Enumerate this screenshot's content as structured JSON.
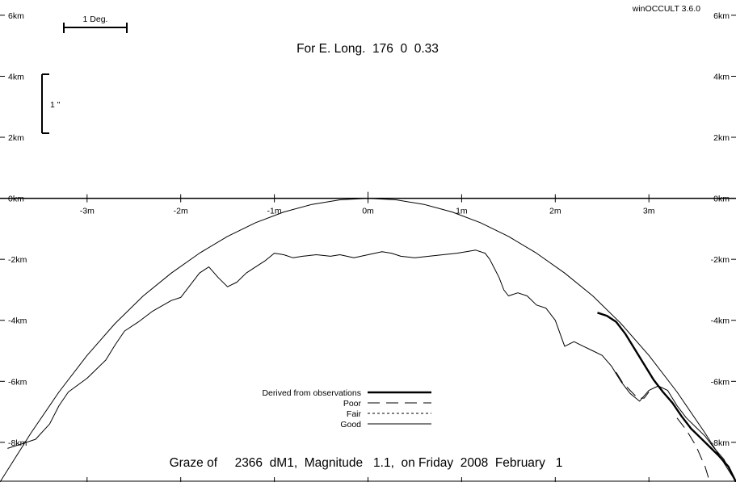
{
  "chart_data": {
    "type": "line",
    "software": "winOCCULT 3.6.0",
    "header": "For E. Long.  176  0  0.33",
    "title": "Graze of     2366  dM1,  Magnitude   1.1,  on Friday  2008  February   1",
    "scale_bar_deg": "1 Deg.",
    "scale_bar_arcsec": "1 \"",
    "x_ticks": [
      {
        "v": -3,
        "label": "-3m"
      },
      {
        "v": -2,
        "label": "-2m"
      },
      {
        "v": -1,
        "label": "-1m"
      },
      {
        "v": 0,
        "label": "0m"
      },
      {
        "v": 1,
        "label": "1m"
      },
      {
        "v": 2,
        "label": "2m"
      },
      {
        "v": 3,
        "label": "3m"
      }
    ],
    "y_ticks": [
      {
        "v": 6,
        "label": "6km"
      },
      {
        "v": 4,
        "label": "4km"
      },
      {
        "v": 2,
        "label": "2km"
      },
      {
        "v": 0,
        "label": "0km"
      },
      {
        "v": -2,
        "label": "-2km"
      },
      {
        "v": -4,
        "label": "-4km"
      },
      {
        "v": -6,
        "label": "-6km"
      },
      {
        "v": -8,
        "label": "-8km"
      }
    ],
    "xlim": [
      -3.93,
      3.93
    ],
    "ylim": [
      -9.3,
      6.5
    ],
    "legend": [
      {
        "label": "Derived from observations",
        "style": "thick"
      },
      {
        "label": "Poor",
        "style": "dashed"
      },
      {
        "label": "Fair",
        "style": "dotted"
      },
      {
        "label": "Good",
        "style": "thin"
      }
    ],
    "series": [
      {
        "style": "thin",
        "x": [
          -3.93,
          -3.6,
          -3.3,
          -3.0,
          -2.7,
          -2.4,
          -2.1,
          -1.8,
          -1.5,
          -1.2,
          -0.9,
          -0.6,
          -0.3,
          0.0,
          0.3,
          0.6,
          0.9,
          1.2,
          1.5,
          1.8,
          2.1,
          2.4,
          2.7,
          3.0,
          3.3,
          3.6,
          3.93
        ],
        "y": [
          -9.3,
          -7.7,
          -6.35,
          -5.15,
          -4.1,
          -3.2,
          -2.45,
          -1.8,
          -1.25,
          -0.8,
          -0.45,
          -0.2,
          -0.05,
          0.0,
          -0.05,
          -0.2,
          -0.45,
          -0.8,
          -1.25,
          -1.8,
          -2.45,
          -3.2,
          -4.1,
          -5.15,
          -6.35,
          -7.7,
          -9.3
        ]
      },
      {
        "style": "thin",
        "x": [
          -3.85,
          -3.7,
          -3.55,
          -3.4,
          -3.3,
          -3.2,
          -3.0,
          -2.8,
          -2.7,
          -2.6,
          -2.45,
          -2.3,
          -2.1,
          -2.0,
          -1.9,
          -1.8,
          -1.7,
          -1.6,
          -1.5,
          -1.4,
          -1.3,
          -1.2,
          -1.1,
          -1.0,
          -0.9,
          -0.8,
          -0.7,
          -0.55,
          -0.4,
          -0.3,
          -0.15,
          0.0,
          0.15,
          0.25,
          0.35,
          0.5,
          0.65,
          0.8,
          0.95,
          1.05,
          1.15,
          1.25,
          1.3,
          1.35,
          1.4,
          1.45,
          1.5,
          1.6,
          1.7,
          1.8,
          1.9,
          2.0,
          2.1,
          2.2,
          2.3,
          2.4,
          2.5,
          2.6,
          2.7,
          2.8,
          2.9,
          3.0,
          3.1,
          3.2,
          3.3,
          3.4,
          3.5,
          3.6,
          3.7,
          3.8,
          3.93
        ],
        "y": [
          -8.2,
          -8.05,
          -7.9,
          -7.4,
          -6.8,
          -6.35,
          -5.9,
          -5.3,
          -4.8,
          -4.35,
          -4.05,
          -3.7,
          -3.35,
          -3.25,
          -2.85,
          -2.45,
          -2.25,
          -2.6,
          -2.9,
          -2.75,
          -2.45,
          -2.25,
          -2.05,
          -1.8,
          -1.85,
          -1.95,
          -1.9,
          -1.85,
          -1.9,
          -1.85,
          -1.95,
          -1.85,
          -1.75,
          -1.8,
          -1.9,
          -1.95,
          -1.9,
          -1.85,
          -1.8,
          -1.75,
          -1.7,
          -1.8,
          -2.0,
          -2.3,
          -2.6,
          -3.0,
          -3.2,
          -3.1,
          -3.2,
          -3.5,
          -3.6,
          -4.0,
          -4.85,
          -4.7,
          -4.85,
          -5.0,
          -5.15,
          -5.5,
          -6.0,
          -6.4,
          -6.65,
          -6.3,
          -6.15,
          -6.3,
          -6.8,
          -7.2,
          -7.5,
          -7.8,
          -8.2,
          -8.55,
          -9.3
        ]
      },
      {
        "style": "thick",
        "x": [
          2.45,
          2.55,
          2.65,
          2.75,
          2.85,
          2.95,
          3.05,
          3.15,
          3.25,
          3.35,
          3.45,
          3.55,
          3.65,
          3.75,
          3.85,
          3.93
        ],
        "y": [
          -3.75,
          -3.85,
          -4.05,
          -4.45,
          -4.95,
          -5.45,
          -5.95,
          -6.35,
          -6.7,
          -7.15,
          -7.55,
          -7.85,
          -8.15,
          -8.45,
          -8.8,
          -9.3
        ]
      },
      {
        "style": "dashed",
        "x": [
          2.65,
          2.72,
          2.8,
          2.88,
          2.95,
          3.0
        ],
        "y": [
          -5.7,
          -6.05,
          -6.3,
          -6.55,
          -6.55,
          -6.35
        ]
      },
      {
        "style": "dashed",
        "x": [
          3.3,
          3.4,
          3.5,
          3.6,
          3.65
        ],
        "y": [
          -7.2,
          -7.6,
          -8.1,
          -8.8,
          -9.3
        ]
      }
    ]
  }
}
